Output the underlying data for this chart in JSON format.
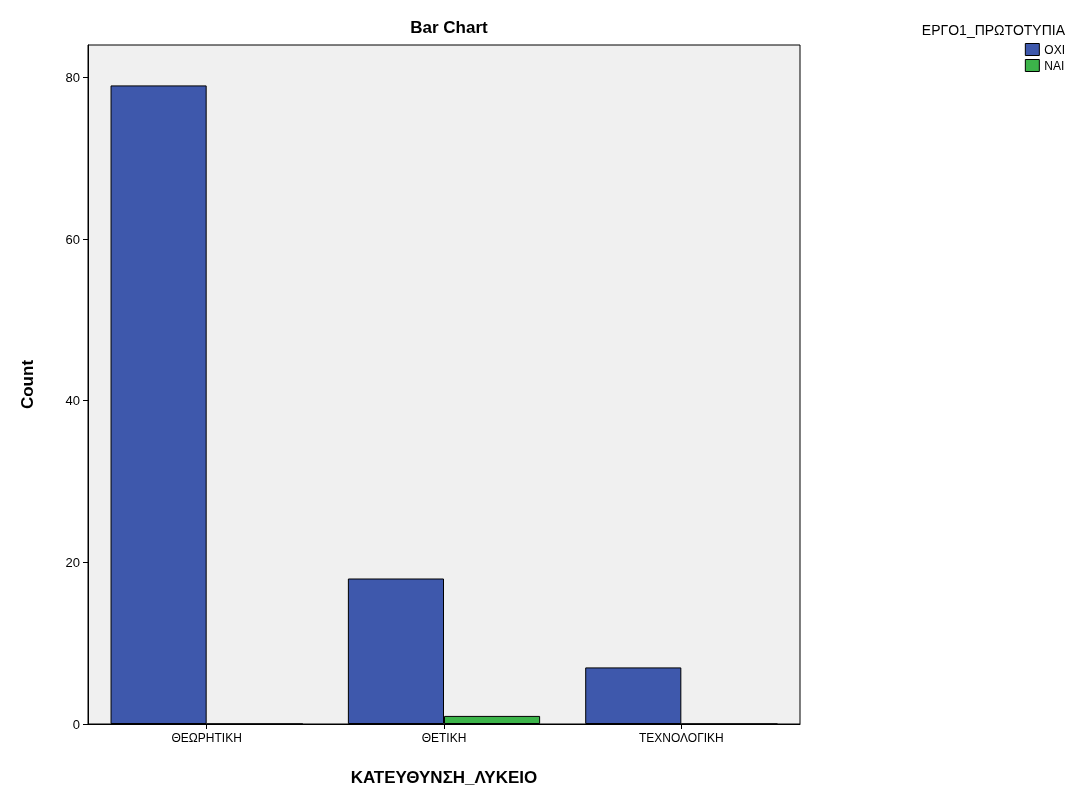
{
  "chart_data": {
    "type": "bar",
    "title": "Bar Chart",
    "xlabel": "ΚΑΤΕΥΘΥΝΣΗ_ΛΥΚΕΙΟ",
    "ylabel": "Count",
    "legend_title": "ΕΡΓΟ1_ΠΡΩΤΟΤΥΠΙΑ",
    "categories": [
      "ΘΕΩΡΗΤΙΚΗ",
      "ΘΕΤΙΚΗ",
      "ΤΕΧΝΟΛΟΓΙΚΗ"
    ],
    "series": [
      {
        "name": "ΟΧΙ",
        "color": "#3e58ac",
        "values": [
          79,
          18,
          7
        ]
      },
      {
        "name": "ΝΑΙ",
        "color": "#3cb44a",
        "values": [
          0,
          1,
          0
        ]
      }
    ],
    "ylim": [
      0,
      84
    ],
    "yticks": [
      0,
      20,
      40,
      60,
      80
    ],
    "grid": false,
    "legend": "top right"
  }
}
